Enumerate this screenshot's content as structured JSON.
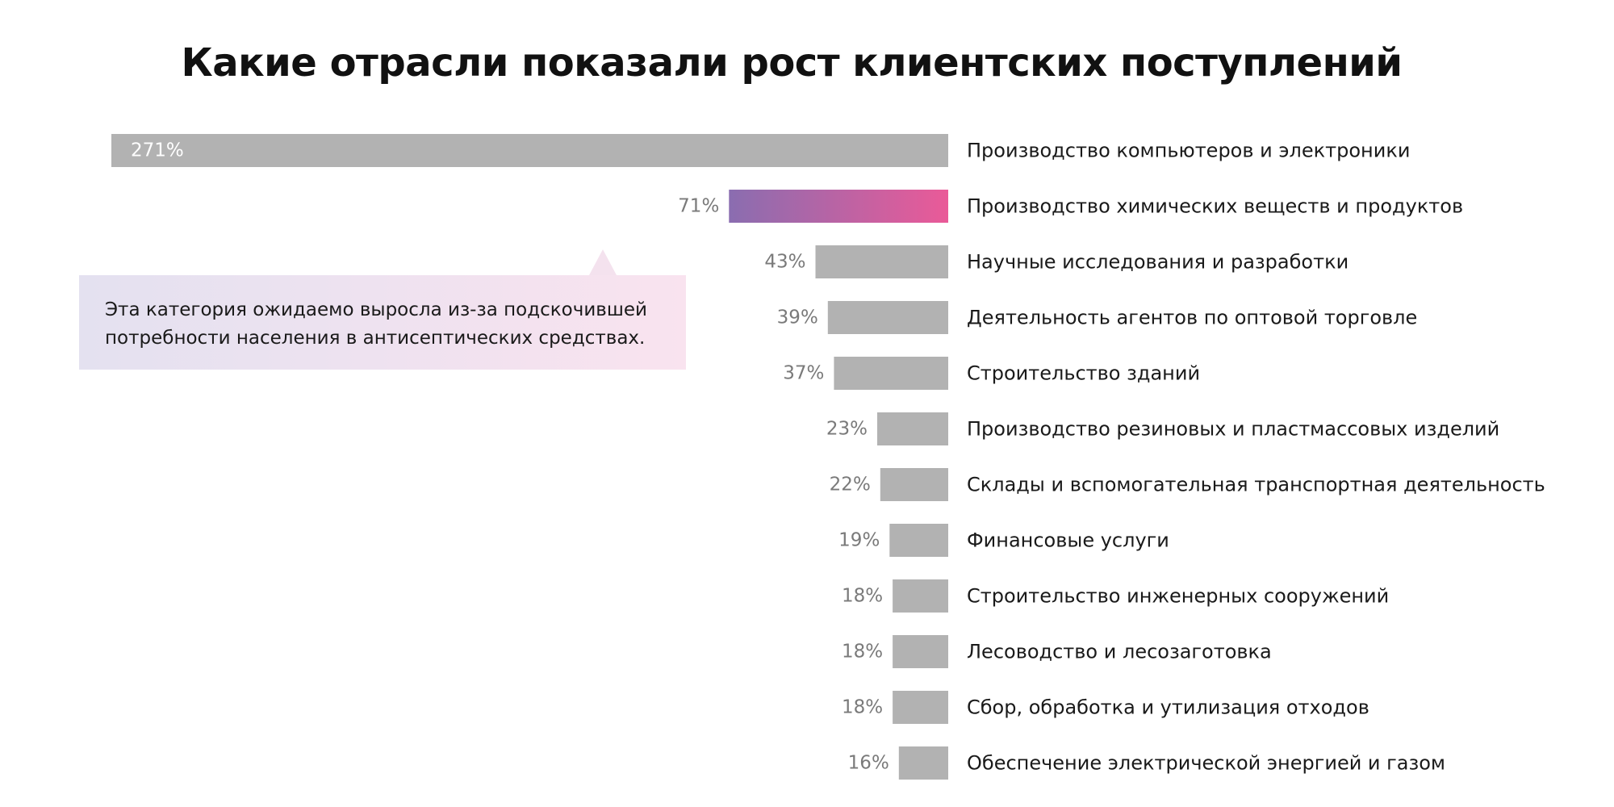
{
  "chart_data": {
    "type": "bar",
    "orientation": "horizontal",
    "title": "Какие отрасли показали рост клиентских поступлений",
    "xlabel": "",
    "ylabel": "",
    "xlim": [
      0,
      271
    ],
    "grid": false,
    "value_suffix": "%",
    "categories": [
      "Производство компьютеров и электроники",
      "Производство химических веществ и продуктов",
      "Научные исследования и разработки",
      "Деятельность агентов по оптовой торговле",
      "Строительство зданий",
      "Производство резиновых и пластмассовых изделий",
      "Склады и вспомогательная транспортная деятельность",
      "Финансовые услуги",
      "Строительство инженерных сооружений",
      "Лесоводство и лесозаготовка",
      "Сбор, обработка и утилизация отходов",
      "Обеспечение электрической энергией и газом"
    ],
    "values": [
      271,
      71,
      43,
      39,
      37,
      23,
      22,
      19,
      18,
      18,
      18,
      16
    ],
    "value_labels": [
      "271%",
      "71%",
      "43%",
      "39%",
      "37%",
      "23%",
      "22%",
      "19%",
      "18%",
      "18%",
      "18%",
      "16%"
    ],
    "highlight_index": 1,
    "colors": {
      "bar": "#b2b2b2",
      "highlight_start": "#8a6db0",
      "highlight_end": "#ea5a98"
    },
    "annotation": {
      "target": "Производство химических веществ и продуктов",
      "text": "Эта категория ожидаемо выросла из-за подскочившей потребности населения в антисептических средствах."
    }
  }
}
